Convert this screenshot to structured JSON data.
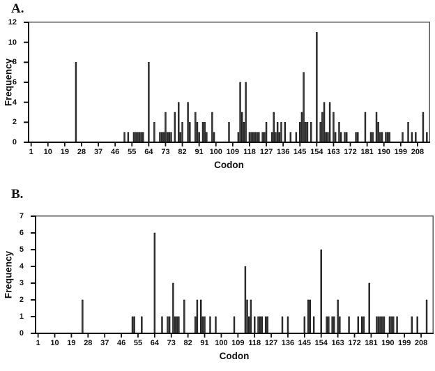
{
  "figure": {
    "panel_a_label": "A.",
    "panel_b_label": "B.",
    "bar_color": "#3a3a3a",
    "bar_edge_color": "#000000",
    "axis_color": "#111111",
    "frame_color": "#555555",
    "background": "#ffffff"
  },
  "chart_data": [
    {
      "type": "bar",
      "panel_label": "A.",
      "title": "",
      "xlabel": "Codon",
      "ylabel": "Frequency",
      "ylim": [
        0,
        12
      ],
      "xlim": [
        0,
        214
      ],
      "grid": false,
      "legend": "none",
      "yticks": [
        12,
        10,
        8,
        6,
        4,
        2,
        0
      ],
      "xticks": [
        1,
        10,
        19,
        28,
        37,
        46,
        55,
        64,
        73,
        82,
        91,
        100,
        109,
        118,
        127,
        136,
        145,
        154,
        163,
        172,
        181,
        190,
        199,
        208
      ],
      "codons": [
        25,
        51,
        53,
        56,
        57,
        58,
        59,
        60,
        61,
        64,
        67,
        70,
        71,
        72,
        73,
        74,
        75,
        76,
        78,
        80,
        81,
        82,
        85,
        86,
        89,
        90,
        91,
        93,
        94,
        95,
        98,
        99,
        107,
        112,
        113,
        114,
        115,
        116,
        118,
        119,
        120,
        121,
        122,
        123,
        125,
        126,
        127,
        130,
        131,
        132,
        133,
        134,
        135,
        137,
        140,
        143,
        145,
        146,
        147,
        148,
        149,
        151,
        154,
        156,
        157,
        158,
        159,
        160,
        161,
        163,
        164,
        166,
        167,
        169,
        170,
        175,
        176,
        180,
        183,
        184,
        186,
        187,
        188,
        189,
        191,
        192,
        193,
        200,
        203,
        205,
        207,
        211,
        213
      ],
      "values": [
        8,
        1,
        1,
        1,
        1,
        1,
        1,
        1,
        1,
        8,
        2,
        1,
        1,
        1,
        3,
        1,
        1,
        1,
        3,
        4,
        1,
        2,
        4,
        2,
        3,
        2,
        1,
        2,
        2,
        1,
        3,
        1,
        2,
        1,
        6,
        3,
        2,
        6,
        1,
        1,
        1,
        1,
        1,
        1,
        1,
        1,
        2,
        1,
        3,
        1,
        2,
        1,
        2,
        2,
        1,
        1,
        2,
        3,
        7,
        2,
        2,
        2,
        11,
        2,
        3,
        4,
        1,
        1,
        4,
        3,
        1,
        2,
        1,
        1,
        1,
        1,
        1,
        3,
        1,
        1,
        3,
        2,
        1,
        1,
        1,
        1,
        1,
        1,
        2,
        1,
        1,
        3,
        1
      ]
    },
    {
      "type": "bar",
      "panel_label": "B.",
      "title": "",
      "xlabel": "Codon",
      "ylabel": "Frequency",
      "ylim": [
        0,
        7
      ],
      "xlim": [
        0,
        214
      ],
      "grid": false,
      "legend": "none",
      "yticks": [
        7,
        6,
        5,
        4,
        3,
        2,
        1,
        0
      ],
      "xticks": [
        1,
        10,
        19,
        28,
        37,
        46,
        55,
        64,
        73,
        82,
        91,
        100,
        109,
        118,
        127,
        136,
        145,
        154,
        163,
        172,
        181,
        190,
        199,
        208
      ],
      "codons": [
        25,
        52,
        53,
        57,
        64,
        68,
        71,
        72,
        74,
        75,
        76,
        77,
        80,
        86,
        87,
        89,
        90,
        91,
        94,
        97,
        107,
        113,
        114,
        115,
        116,
        118,
        120,
        121,
        122,
        124,
        125,
        133,
        136,
        145,
        147,
        148,
        150,
        154,
        157,
        158,
        160,
        161,
        163,
        164,
        169,
        174,
        176,
        177,
        180,
        184,
        185,
        186,
        187,
        188,
        191,
        192,
        193,
        195,
        203,
        206,
        211
      ],
      "values": [
        2,
        1,
        1,
        1,
        6,
        1,
        1,
        1,
        3,
        1,
        1,
        1,
        2,
        1,
        2,
        2,
        1,
        1,
        1,
        1,
        1,
        4,
        2,
        1,
        2,
        1,
        1,
        1,
        1,
        1,
        1,
        1,
        1,
        1,
        2,
        2,
        1,
        5,
        1,
        1,
        1,
        1,
        2,
        1,
        1,
        1,
        1,
        1,
        3,
        1,
        1,
        1,
        1,
        1,
        1,
        1,
        1,
        1,
        1,
        1,
        2
      ]
    }
  ]
}
